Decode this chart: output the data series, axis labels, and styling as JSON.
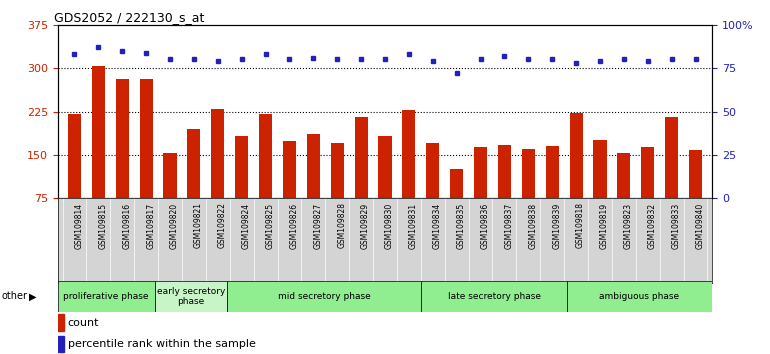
{
  "title": "GDS2052 / 222130_s_at",
  "categories": [
    "GSM109814",
    "GSM109815",
    "GSM109816",
    "GSM109817",
    "GSM109820",
    "GSM109821",
    "GSM109822",
    "GSM109824",
    "GSM109825",
    "GSM109826",
    "GSM109827",
    "GSM109828",
    "GSM109829",
    "GSM109830",
    "GSM109831",
    "GSM109834",
    "GSM109835",
    "GSM109836",
    "GSM109837",
    "GSM109838",
    "GSM109839",
    "GSM109818",
    "GSM109819",
    "GSM109823",
    "GSM109832",
    "GSM109833",
    "GSM109840"
  ],
  "bar_values": [
    220,
    303,
    282,
    282,
    154,
    195,
    230,
    182,
    220,
    174,
    186,
    170,
    215,
    183,
    228,
    170,
    125,
    163,
    167,
    160,
    165,
    222,
    175,
    153,
    163,
    215,
    158
  ],
  "dot_values": [
    83,
    87,
    85,
    84,
    80,
    80,
    79,
    80,
    83,
    80,
    81,
    80,
    80,
    80,
    83,
    79,
    72,
    80,
    82,
    80,
    80,
    78,
    79,
    80,
    79,
    80,
    80
  ],
  "phase_groups": [
    {
      "label": "proliferative phase",
      "count": 4,
      "color": "#90EE90"
    },
    {
      "label": "early secretory\nphase",
      "count": 3,
      "color": "#c8f5c8"
    },
    {
      "label": "mid secretory phase",
      "count": 8,
      "color": "#90EE90"
    },
    {
      "label": "late secretory phase",
      "count": 6,
      "color": "#90EE90"
    },
    {
      "label": "ambiguous phase",
      "count": 6,
      "color": "#90EE90"
    }
  ],
  "ylim_left": [
    75,
    375
  ],
  "ylim_right": [
    0,
    100
  ],
  "yticks_left": [
    75,
    150,
    225,
    300,
    375
  ],
  "yticks_right": [
    0,
    25,
    50,
    75,
    100
  ],
  "bar_color": "#cc2200",
  "dot_color": "#2222bb",
  "tick_bg_color": "#d4d4d4",
  "other_label": "other"
}
